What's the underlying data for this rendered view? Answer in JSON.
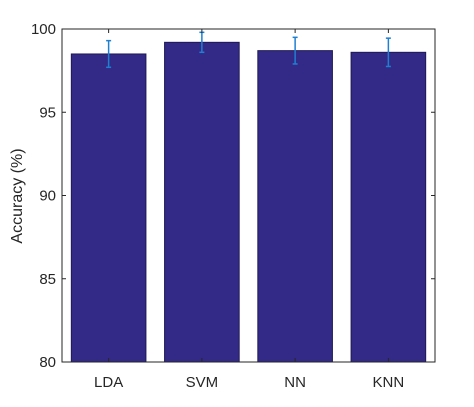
{
  "chart_data": {
    "type": "bar",
    "categories": [
      "LDA",
      "SVM",
      "NN",
      "KNN"
    ],
    "values": [
      98.5,
      99.2,
      98.7,
      98.6
    ],
    "error": [
      0.8,
      0.6,
      0.8,
      0.85
    ],
    "xlabel": "",
    "ylabel": "Accuracy (%)",
    "ylim": [
      80,
      100
    ],
    "yticks": [
      80,
      85,
      90,
      95,
      100
    ],
    "grid": false,
    "colors": {
      "bar": "#332a87",
      "bar_edge": "#1e1a55",
      "error_bar": "#1f7fd0",
      "axis": "#262626"
    }
  }
}
